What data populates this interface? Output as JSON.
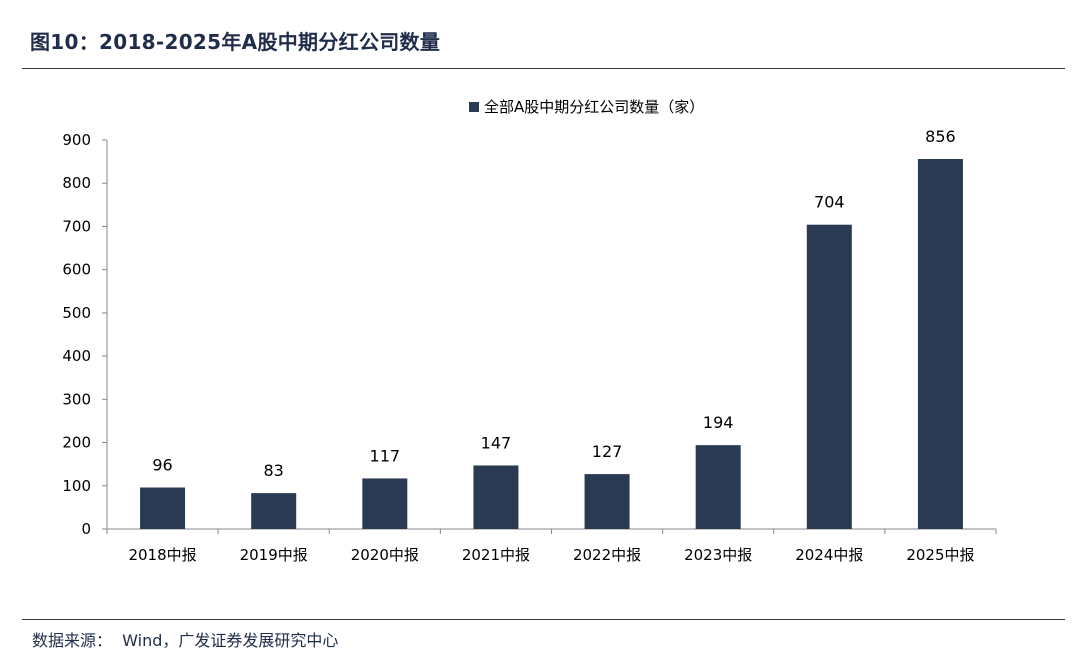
{
  "figure_title": "图10：2018-2025年A股中期分红公司数量",
  "source_note": "数据来源：  Wind，广发证券发展研究中心",
  "chart_data": {
    "type": "bar",
    "categories": [
      "2018中报",
      "2019中报",
      "2020中报",
      "2021中报",
      "2022中报",
      "2023中报",
      "2024中报",
      "2025中报"
    ],
    "series": [
      {
        "name": "全部A股中期分红公司数量（家）",
        "values": [
          96,
          83,
          117,
          147,
          127,
          194,
          704,
          856
        ],
        "color": "#2a3a52"
      }
    ],
    "data_labels": [
      "96",
      "83",
      "117",
      "147",
      "127",
      "194",
      "704",
      "856"
    ],
    "ylim": [
      0,
      900
    ],
    "yticks": [
      0,
      100,
      200,
      300,
      400,
      500,
      600,
      700,
      800,
      900
    ],
    "grid": false,
    "legend_position": "top-center"
  }
}
